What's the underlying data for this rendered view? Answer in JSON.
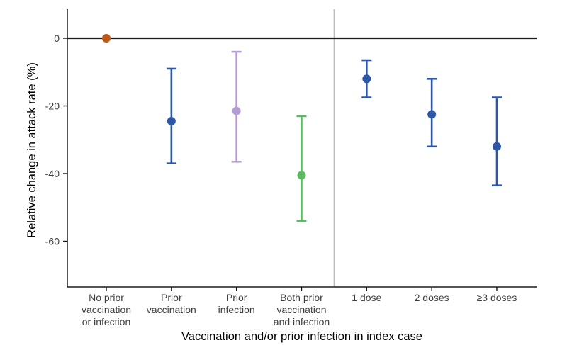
{
  "chart_data": {
    "type": "scatter",
    "subtype": "point-range-errorbar",
    "title": "",
    "xlabel": "Vaccination and/or prior infection in index case",
    "ylabel": "Relative change in attack rate (%)",
    "ylim": [
      -73.5,
      8.5
    ],
    "y_ticks": [
      0,
      -20,
      -40,
      -60
    ],
    "grid": "off",
    "legend": "none",
    "reference_line_y": 0,
    "divider_after_index": 3,
    "colors": {
      "axis": "#1a1a1a",
      "zero_line": "#1a1a1a",
      "divider": "#bcbcbc",
      "tick_text": "#3f3f3f",
      "title_text": "#000000",
      "blue": "#2e56a6",
      "purple": "#b49dd3",
      "green": "#5abb63",
      "orange": "#bf5716"
    },
    "points": [
      {
        "slug": "no-prior-vaccination-or-infection",
        "category_lines": [
          "No prior",
          "vaccination",
          "or infection"
        ],
        "value": 0,
        "ci_low": null,
        "ci_high": null,
        "color_key": "orange"
      },
      {
        "slug": "prior-vaccination",
        "category_lines": [
          "Prior",
          "vaccination"
        ],
        "value": -24.5,
        "ci_low": -37,
        "ci_high": -9,
        "color_key": "blue"
      },
      {
        "slug": "prior-infection",
        "category_lines": [
          "Prior",
          "infection"
        ],
        "value": -21.5,
        "ci_low": -36.5,
        "ci_high": -4,
        "color_key": "purple"
      },
      {
        "slug": "both-prior-vaccination-and-infection",
        "category_lines": [
          "Both prior",
          "vaccination",
          "and infection"
        ],
        "value": -40.5,
        "ci_low": -54,
        "ci_high": -23,
        "color_key": "green"
      },
      {
        "slug": "1-dose",
        "category_lines": [
          "1 dose"
        ],
        "value": -12,
        "ci_low": -17.5,
        "ci_high": -6.5,
        "color_key": "blue"
      },
      {
        "slug": "2-doses",
        "category_lines": [
          "2 doses"
        ],
        "value": -22.5,
        "ci_low": -32,
        "ci_high": -12,
        "color_key": "blue"
      },
      {
        "slug": "3-or-more-doses",
        "category_lines": [
          "≥3 doses"
        ],
        "value": -32,
        "ci_low": -43.5,
        "ci_high": -17.5,
        "color_key": "blue"
      }
    ]
  }
}
